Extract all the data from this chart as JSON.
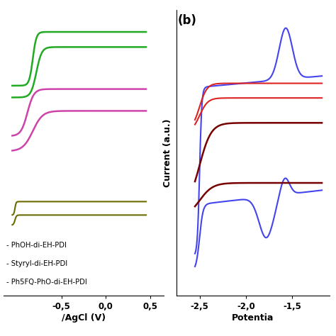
{
  "left_panel": {
    "green_color": "#22aa22",
    "magenta_color": "#cc44aa",
    "olive_color": "#6b6b00",
    "xlim": [
      -1.15,
      0.65
    ],
    "ylim": [
      -0.7,
      1.0
    ],
    "xticks": [
      -0.5,
      0.0,
      0.5
    ],
    "xtick_labels": [
      "-0,5",
      "0,0",
      "0,5"
    ],
    "xlabel": "/AgCl (V)",
    "legend_labels": [
      "- PhOH-di-EH-PDI",
      "- Styryl-di-EH-PDI",
      "- Ph5FQ-PhO-di-EH-PDI"
    ],
    "legend_colors": [
      "#22aa22",
      "#cc44aa",
      "#6b6b00"
    ]
  },
  "right_panel": {
    "blue_color": "#4444ee",
    "red_color": "#dd2222",
    "darkred_color": "#770000",
    "xlim": [
      -2.75,
      -1.1
    ],
    "ylim": [
      -1.05,
      0.9
    ],
    "xticks": [
      -2.5,
      -2.0,
      -1.5
    ],
    "xtick_labels": [
      "-2,5",
      "-2,0",
      "-1,5"
    ],
    "xlabel": "Potentia",
    "ylabel": "Current (a.u.)",
    "label_b": "(b)"
  }
}
